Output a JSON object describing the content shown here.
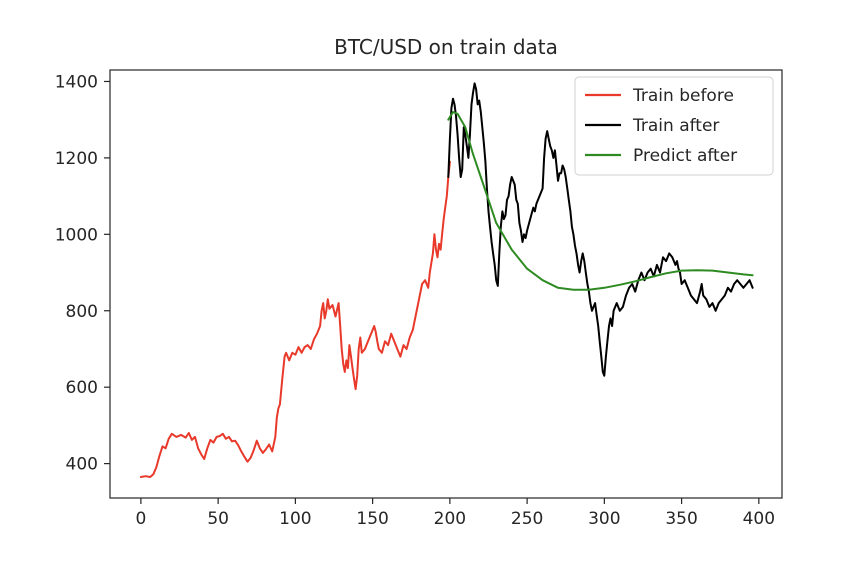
{
  "chart_data": {
    "type": "line",
    "title": "BTC/USD on train data",
    "xlabel": "",
    "ylabel": "",
    "xlim": [
      -20,
      415
    ],
    "ylim": [
      310,
      1430
    ],
    "xticks": [
      0,
      50,
      100,
      150,
      200,
      250,
      300,
      350,
      400
    ],
    "yticks": [
      400,
      600,
      800,
      1000,
      1200,
      1400
    ],
    "grid": false,
    "legend_position": "upper right",
    "series": [
      {
        "name": "Train before",
        "color": "#e8392a",
        "points": [
          [
            0,
            365
          ],
          [
            3,
            367
          ],
          [
            6,
            365
          ],
          [
            8,
            372
          ],
          [
            10,
            390
          ],
          [
            12,
            420
          ],
          [
            14,
            445
          ],
          [
            16,
            440
          ],
          [
            18,
            465
          ],
          [
            20,
            478
          ],
          [
            23,
            470
          ],
          [
            26,
            475
          ],
          [
            29,
            468
          ],
          [
            31,
            480
          ],
          [
            33,
            462
          ],
          [
            35,
            470
          ],
          [
            37,
            440
          ],
          [
            39,
            425
          ],
          [
            41,
            412
          ],
          [
            43,
            440
          ],
          [
            45,
            462
          ],
          [
            47,
            455
          ],
          [
            49,
            470
          ],
          [
            51,
            472
          ],
          [
            53,
            478
          ],
          [
            55,
            465
          ],
          [
            57,
            470
          ],
          [
            59,
            458
          ],
          [
            61,
            460
          ],
          [
            63,
            448
          ],
          [
            65,
            432
          ],
          [
            67,
            418
          ],
          [
            69,
            405
          ],
          [
            71,
            415
          ],
          [
            73,
            435
          ],
          [
            75,
            460
          ],
          [
            77,
            440
          ],
          [
            79,
            428
          ],
          [
            81,
            438
          ],
          [
            83,
            450
          ],
          [
            85,
            432
          ],
          [
            87,
            470
          ],
          [
            88,
            520
          ],
          [
            89,
            545
          ],
          [
            90,
            555
          ],
          [
            91,
            600
          ],
          [
            92,
            640
          ],
          [
            93,
            680
          ],
          [
            94,
            690
          ],
          [
            96,
            670
          ],
          [
            98,
            690
          ],
          [
            100,
            685
          ],
          [
            102,
            705
          ],
          [
            104,
            690
          ],
          [
            106,
            705
          ],
          [
            108,
            710
          ],
          [
            110,
            700
          ],
          [
            112,
            725
          ],
          [
            114,
            740
          ],
          [
            116,
            760
          ],
          [
            117,
            800
          ],
          [
            118,
            820
          ],
          [
            119,
            780
          ],
          [
            120,
            800
          ],
          [
            121,
            830
          ],
          [
            122,
            805
          ],
          [
            124,
            815
          ],
          [
            126,
            785
          ],
          [
            128,
            820
          ],
          [
            129,
            760
          ],
          [
            130,
            700
          ],
          [
            131,
            660
          ],
          [
            132,
            640
          ],
          [
            133,
            670
          ],
          [
            134,
            650
          ],
          [
            135,
            710
          ],
          [
            136,
            680
          ],
          [
            137,
            650
          ],
          [
            138,
            620
          ],
          [
            139,
            595
          ],
          [
            140,
            630
          ],
          [
            141,
            700
          ],
          [
            142,
            730
          ],
          [
            143,
            690
          ],
          [
            145,
            700
          ],
          [
            147,
            720
          ],
          [
            149,
            740
          ],
          [
            151,
            760
          ],
          [
            152,
            745
          ],
          [
            153,
            720
          ],
          [
            154,
            700
          ],
          [
            156,
            690
          ],
          [
            158,
            720
          ],
          [
            160,
            710
          ],
          [
            162,
            740
          ],
          [
            164,
            720
          ],
          [
            166,
            700
          ],
          [
            168,
            680
          ],
          [
            170,
            710
          ],
          [
            172,
            700
          ],
          [
            174,
            730
          ],
          [
            176,
            750
          ],
          [
            178,
            790
          ],
          [
            180,
            830
          ],
          [
            182,
            870
          ],
          [
            184,
            880
          ],
          [
            186,
            860
          ],
          [
            187,
            900
          ],
          [
            189,
            950
          ],
          [
            190,
            1000
          ],
          [
            191,
            960
          ],
          [
            192,
            940
          ],
          [
            193,
            975
          ],
          [
            194,
            960
          ],
          [
            195,
            1000
          ],
          [
            196,
            1040
          ],
          [
            197,
            1070
          ],
          [
            198,
            1100
          ],
          [
            199,
            1150
          ],
          [
            200,
            1190
          ]
        ]
      },
      {
        "name": "Train after",
        "color": "#000000",
        "points": [
          [
            199,
            1150
          ],
          [
            200,
            1250
          ],
          [
            201,
            1330
          ],
          [
            202,
            1355
          ],
          [
            203,
            1340
          ],
          [
            204,
            1310
          ],
          [
            205,
            1260
          ],
          [
            206,
            1200
          ],
          [
            207,
            1150
          ],
          [
            208,
            1170
          ],
          [
            209,
            1280
          ],
          [
            210,
            1260
          ],
          [
            211,
            1230
          ],
          [
            212,
            1200
          ],
          [
            213,
            1260
          ],
          [
            214,
            1340
          ],
          [
            215,
            1370
          ],
          [
            216,
            1395
          ],
          [
            217,
            1380
          ],
          [
            218,
            1340
          ],
          [
            219,
            1350
          ],
          [
            220,
            1320
          ],
          [
            221,
            1280
          ],
          [
            222,
            1240
          ],
          [
            223,
            1190
          ],
          [
            224,
            1120
          ],
          [
            225,
            1060
          ],
          [
            226,
            1020
          ],
          [
            227,
            980
          ],
          [
            228,
            950
          ],
          [
            229,
            920
          ],
          [
            230,
            880
          ],
          [
            231,
            865
          ],
          [
            232,
            950
          ],
          [
            233,
            1020
          ],
          [
            234,
            1060
          ],
          [
            235,
            1040
          ],
          [
            236,
            1050
          ],
          [
            237,
            1090
          ],
          [
            238,
            1100
          ],
          [
            239,
            1130
          ],
          [
            240,
            1150
          ],
          [
            241,
            1140
          ],
          [
            242,
            1130
          ],
          [
            243,
            1090
          ],
          [
            244,
            1080
          ],
          [
            245,
            1030
          ],
          [
            246,
            1010
          ],
          [
            247,
            980
          ],
          [
            248,
            1000
          ],
          [
            249,
            990
          ],
          [
            250,
            1010
          ],
          [
            252,
            1040
          ],
          [
            254,
            1070
          ],
          [
            255,
            1060
          ],
          [
            256,
            1080
          ],
          [
            258,
            1100
          ],
          [
            260,
            1120
          ],
          [
            261,
            1200
          ],
          [
            262,
            1250
          ],
          [
            263,
            1270
          ],
          [
            264,
            1250
          ],
          [
            265,
            1230
          ],
          [
            266,
            1220
          ],
          [
            267,
            1200
          ],
          [
            268,
            1220
          ],
          [
            269,
            1180
          ],
          [
            270,
            1140
          ],
          [
            271,
            1160
          ],
          [
            272,
            1160
          ],
          [
            273,
            1180
          ],
          [
            274,
            1170
          ],
          [
            275,
            1150
          ],
          [
            276,
            1120
          ],
          [
            277,
            1090
          ],
          [
            278,
            1060
          ],
          [
            279,
            1020
          ],
          [
            280,
            1000
          ],
          [
            281,
            970
          ],
          [
            282,
            950
          ],
          [
            283,
            920
          ],
          [
            284,
            900
          ],
          [
            285,
            930
          ],
          [
            286,
            950
          ],
          [
            287,
            930
          ],
          [
            288,
            900
          ],
          [
            289,
            870
          ],
          [
            290,
            850
          ],
          [
            291,
            820
          ],
          [
            292,
            800
          ],
          [
            293,
            810
          ],
          [
            294,
            820
          ],
          [
            295,
            790
          ],
          [
            296,
            760
          ],
          [
            297,
            720
          ],
          [
            298,
            680
          ],
          [
            299,
            640
          ],
          [
            300,
            630
          ],
          [
            301,
            680
          ],
          [
            302,
            720
          ],
          [
            303,
            760
          ],
          [
            304,
            780
          ],
          [
            305,
            760
          ],
          [
            306,
            800
          ],
          [
            308,
            820
          ],
          [
            310,
            800
          ],
          [
            312,
            810
          ],
          [
            314,
            840
          ],
          [
            316,
            860
          ],
          [
            318,
            870
          ],
          [
            320,
            850
          ],
          [
            322,
            880
          ],
          [
            324,
            900
          ],
          [
            326,
            880
          ],
          [
            328,
            900
          ],
          [
            330,
            910
          ],
          [
            332,
            890
          ],
          [
            334,
            920
          ],
          [
            336,
            900
          ],
          [
            338,
            940
          ],
          [
            340,
            930
          ],
          [
            342,
            950
          ],
          [
            344,
            940
          ],
          [
            345,
            930
          ],
          [
            346,
            920
          ],
          [
            347,
            930
          ],
          [
            348,
            910
          ],
          [
            349,
            900
          ],
          [
            350,
            870
          ],
          [
            352,
            880
          ],
          [
            354,
            860
          ],
          [
            356,
            840
          ],
          [
            358,
            830
          ],
          [
            360,
            820
          ],
          [
            362,
            850
          ],
          [
            363,
            870
          ],
          [
            364,
            840
          ],
          [
            366,
            830
          ],
          [
            368,
            810
          ],
          [
            370,
            820
          ],
          [
            372,
            800
          ],
          [
            374,
            820
          ],
          [
            376,
            830
          ],
          [
            378,
            840
          ],
          [
            380,
            860
          ],
          [
            382,
            850
          ],
          [
            384,
            870
          ],
          [
            386,
            880
          ],
          [
            388,
            870
          ],
          [
            390,
            860
          ],
          [
            392,
            870
          ],
          [
            394,
            880
          ],
          [
            396,
            860
          ]
        ]
      },
      {
        "name": "Predict after",
        "color": "#2e8b22",
        "points": [
          [
            199,
            1300
          ],
          [
            202,
            1320
          ],
          [
            205,
            1315
          ],
          [
            210,
            1280
          ],
          [
            215,
            1210
          ],
          [
            220,
            1150
          ],
          [
            225,
            1090
          ],
          [
            230,
            1030
          ],
          [
            240,
            960
          ],
          [
            250,
            910
          ],
          [
            260,
            880
          ],
          [
            270,
            860
          ],
          [
            280,
            855
          ],
          [
            290,
            855
          ],
          [
            300,
            860
          ],
          [
            310,
            868
          ],
          [
            320,
            877
          ],
          [
            330,
            888
          ],
          [
            340,
            898
          ],
          [
            350,
            905
          ],
          [
            360,
            906
          ],
          [
            370,
            905
          ],
          [
            380,
            900
          ],
          [
            390,
            895
          ],
          [
            396,
            893
          ]
        ]
      }
    ]
  }
}
